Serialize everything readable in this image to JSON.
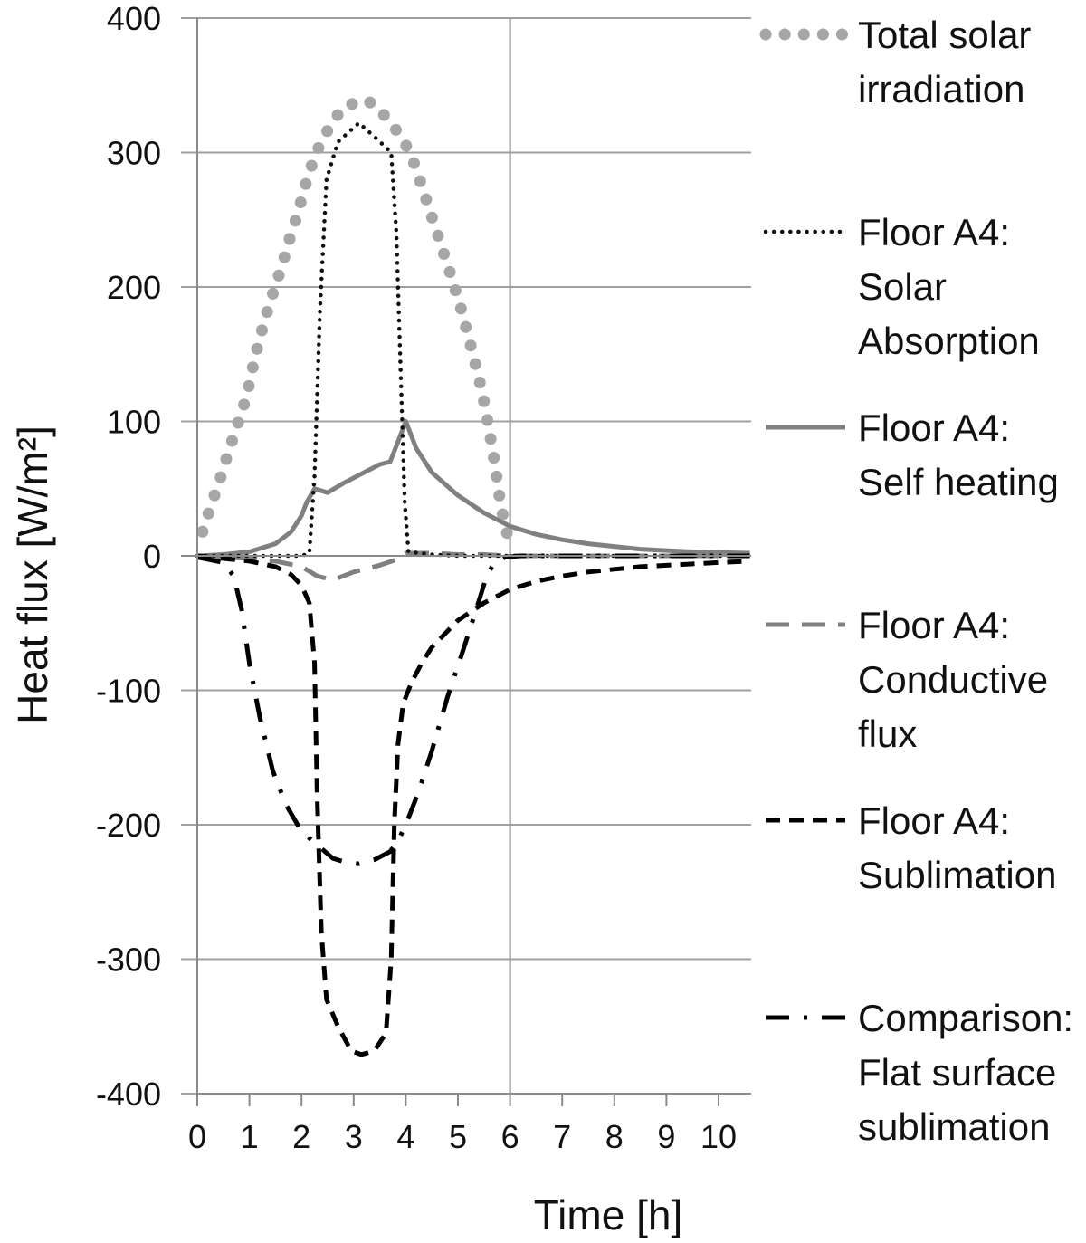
{
  "chart_data": {
    "type": "line",
    "xlabel": "Time [h]",
    "ylabel": "Heat flux [W/m²]",
    "xlim": [
      0,
      10.6
    ],
    "ylim": [
      -400,
      400
    ],
    "xticks": [
      0,
      1,
      2,
      3,
      4,
      5,
      6,
      7,
      8,
      9,
      10
    ],
    "yticks": [
      400,
      300,
      200,
      100,
      0,
      -100,
      -200,
      -300,
      -400
    ],
    "grid": "horizontal major gridlines plus vertical line at 6 h",
    "legend_position": "right",
    "series": [
      {
        "name": "Total solar irradiation",
        "style": "dotted",
        "color": "#a6a6a6",
        "points": [
          [
            0.1,
            18
          ],
          [
            0.25,
            36
          ],
          [
            0.42,
            55
          ],
          [
            0.58,
            75
          ],
          [
            0.72,
            92
          ],
          [
            0.88,
            110
          ],
          [
            1.0,
            128
          ],
          [
            1.1,
            147
          ],
          [
            1.22,
            165
          ],
          [
            1.35,
            183
          ],
          [
            1.5,
            201
          ],
          [
            1.65,
            219
          ],
          [
            1.78,
            237
          ],
          [
            1.93,
            255
          ],
          [
            2.05,
            273
          ],
          [
            2.2,
            291
          ],
          [
            2.35,
            306
          ],
          [
            2.55,
            320
          ],
          [
            2.8,
            334
          ],
          [
            3.2,
            339
          ],
          [
            3.4,
            336
          ],
          [
            3.65,
            325
          ],
          [
            3.95,
            310
          ],
          [
            4.15,
            293
          ],
          [
            4.3,
            276
          ],
          [
            4.45,
            258
          ],
          [
            4.62,
            238
          ],
          [
            4.78,
            219
          ],
          [
            4.92,
            202
          ],
          [
            5.05,
            185
          ],
          [
            5.18,
            166
          ],
          [
            5.3,
            148
          ],
          [
            5.42,
            129
          ],
          [
            5.52,
            111
          ],
          [
            5.6,
            93
          ],
          [
            5.68,
            75
          ],
          [
            5.75,
            57
          ],
          [
            5.82,
            38
          ],
          [
            5.92,
            20
          ],
          [
            6.02,
            5
          ]
        ]
      },
      {
        "name": "Floor A4: Solar Absorption",
        "style": "dotted",
        "color": "#111111",
        "points": [
          [
            0,
            0
          ],
          [
            1,
            0
          ],
          [
            2,
            0
          ],
          [
            2.15,
            2
          ],
          [
            2.25,
            60
          ],
          [
            2.35,
            180
          ],
          [
            2.48,
            280
          ],
          [
            2.7,
            308
          ],
          [
            3.1,
            322
          ],
          [
            3.45,
            310
          ],
          [
            3.72,
            300
          ],
          [
            3.82,
            240
          ],
          [
            3.9,
            140
          ],
          [
            3.98,
            40
          ],
          [
            4.05,
            3
          ],
          [
            4.5,
            1
          ],
          [
            5,
            0
          ],
          [
            10.6,
            0
          ]
        ]
      },
      {
        "name": "Floor A4: Self heating",
        "style": "solid",
        "color": "#808080",
        "points": [
          [
            0,
            0
          ],
          [
            0.5,
            1
          ],
          [
            1,
            3
          ],
          [
            1.5,
            9
          ],
          [
            1.8,
            18
          ],
          [
            2.0,
            30
          ],
          [
            2.1,
            40
          ],
          [
            2.25,
            50
          ],
          [
            2.5,
            47
          ],
          [
            2.8,
            54
          ],
          [
            3.2,
            62
          ],
          [
            3.5,
            68
          ],
          [
            3.7,
            70
          ],
          [
            3.85,
            85
          ],
          [
            4.0,
            100
          ],
          [
            4.2,
            80
          ],
          [
            4.5,
            62
          ],
          [
            5.0,
            45
          ],
          [
            5.5,
            32
          ],
          [
            6.0,
            22
          ],
          [
            6.5,
            16
          ],
          [
            7,
            12
          ],
          [
            7.5,
            9
          ],
          [
            8,
            7
          ],
          [
            8.5,
            5
          ],
          [
            9,
            4
          ],
          [
            9.5,
            3
          ],
          [
            10,
            2.5
          ],
          [
            10.6,
            2
          ]
        ]
      },
      {
        "name": "Floor A4: Conductive flux",
        "style": "dashed",
        "color": "#808080",
        "points": [
          [
            0,
            0
          ],
          [
            0.5,
            -1
          ],
          [
            1,
            -2
          ],
          [
            1.5,
            -4
          ],
          [
            2.0,
            -8
          ],
          [
            2.3,
            -15
          ],
          [
            2.6,
            -18
          ],
          [
            3.0,
            -12
          ],
          [
            3.5,
            -7
          ],
          [
            3.8,
            -3
          ],
          [
            4.0,
            2
          ],
          [
            4.5,
            2
          ],
          [
            5.0,
            1
          ],
          [
            5.5,
            1
          ],
          [
            6.0,
            0
          ],
          [
            7,
            0
          ],
          [
            8,
            0
          ],
          [
            9,
            0
          ],
          [
            10,
            0
          ],
          [
            10.6,
            0
          ]
        ]
      },
      {
        "name": "Floor A4: Sublimation",
        "style": "dashed",
        "color": "#000000",
        "points": [
          [
            0,
            0
          ],
          [
            0.5,
            -2
          ],
          [
            1,
            -4
          ],
          [
            1.5,
            -8
          ],
          [
            1.8,
            -14
          ],
          [
            2.0,
            -22
          ],
          [
            2.15,
            -35
          ],
          [
            2.25,
            -80
          ],
          [
            2.3,
            -180
          ],
          [
            2.38,
            -280
          ],
          [
            2.48,
            -330
          ],
          [
            2.7,
            -350
          ],
          [
            2.95,
            -368
          ],
          [
            3.15,
            -371
          ],
          [
            3.4,
            -368
          ],
          [
            3.62,
            -355
          ],
          [
            3.72,
            -300
          ],
          [
            3.78,
            -200
          ],
          [
            3.85,
            -140
          ],
          [
            3.95,
            -110
          ],
          [
            4.1,
            -95
          ],
          [
            4.3,
            -80
          ],
          [
            4.5,
            -68
          ],
          [
            5.0,
            -48
          ],
          [
            5.5,
            -35
          ],
          [
            6.0,
            -25
          ],
          [
            6.5,
            -19
          ],
          [
            7,
            -15
          ],
          [
            7.5,
            -12
          ],
          [
            8,
            -10
          ],
          [
            8.5,
            -8
          ],
          [
            9,
            -7
          ],
          [
            9.5,
            -6
          ],
          [
            10,
            -5
          ],
          [
            10.6,
            -4
          ]
        ]
      },
      {
        "name": "Comparison: Flat surface sublimation",
        "style": "dash-dot",
        "color": "#000000",
        "points": [
          [
            0,
            -1
          ],
          [
            0.5,
            -5
          ],
          [
            0.7,
            -15
          ],
          [
            0.85,
            -40
          ],
          [
            1.0,
            -80
          ],
          [
            1.2,
            -120
          ],
          [
            1.45,
            -160
          ],
          [
            1.7,
            -185
          ],
          [
            2.0,
            -205
          ],
          [
            2.3,
            -215
          ],
          [
            2.6,
            -225
          ],
          [
            2.85,
            -228
          ],
          [
            3.1,
            -229
          ],
          [
            3.4,
            -226
          ],
          [
            3.7,
            -220
          ],
          [
            3.85,
            -212
          ],
          [
            4.0,
            -200
          ],
          [
            4.25,
            -175
          ],
          [
            4.5,
            -145
          ],
          [
            4.8,
            -105
          ],
          [
            5.1,
            -70
          ],
          [
            5.35,
            -40
          ],
          [
            5.55,
            -15
          ],
          [
            5.7,
            -5
          ],
          [
            5.9,
            -1
          ],
          [
            6.2,
            0
          ],
          [
            7,
            0
          ],
          [
            10.6,
            0
          ]
        ]
      }
    ]
  }
}
